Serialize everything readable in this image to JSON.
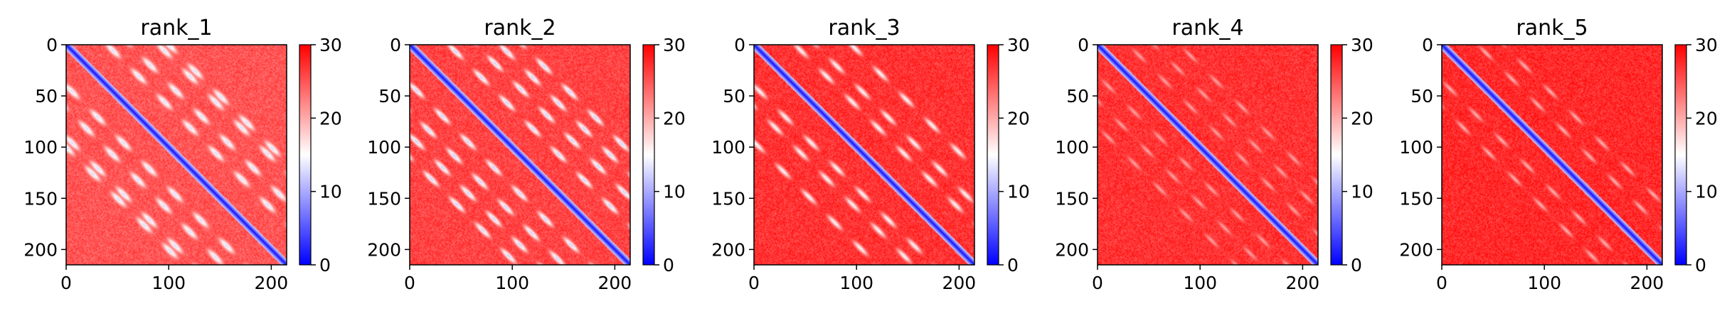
{
  "chart_data": [
    {
      "type": "heatmap",
      "title": "rank_1",
      "matrix_size": 215,
      "xlim": [
        0,
        215
      ],
      "ylim": [
        215,
        0
      ],
      "xticks": [
        0,
        100,
        200
      ],
      "yticks": [
        0,
        50,
        100,
        150,
        200
      ],
      "colorbar": {
        "range": [
          0,
          30
        ],
        "ticks": [
          0,
          10,
          20,
          30
        ],
        "colormap": "bwr"
      },
      "pattern": {
        "diagonal_value": 1,
        "background_value": 27,
        "contact_band_offsets": [
          40,
          62,
          90,
          100
        ],
        "contact_value": 12,
        "band_width": 7
      }
    },
    {
      "type": "heatmap",
      "title": "rank_2",
      "matrix_size": 215,
      "xlim": [
        0,
        215
      ],
      "ylim": [
        215,
        0
      ],
      "xticks": [
        0,
        100,
        200
      ],
      "yticks": [
        0,
        50,
        100,
        150,
        200
      ],
      "colorbar": {
        "range": [
          0,
          30
        ],
        "ticks": [
          0,
          10,
          20,
          30
        ],
        "colormap": "bwr"
      },
      "pattern": {
        "diagonal_value": 1,
        "background_value": 28,
        "contact_band_offsets": [
          38,
          65,
          88,
          110
        ],
        "contact_value": 11,
        "band_width": 6
      }
    },
    {
      "type": "heatmap",
      "title": "rank_3",
      "matrix_size": 215,
      "xlim": [
        0,
        215
      ],
      "ylim": [
        215,
        0
      ],
      "xticks": [
        0,
        100,
        200
      ],
      "yticks": [
        0,
        50,
        100,
        150,
        200
      ],
      "colorbar": {
        "range": [
          0,
          30
        ],
        "ticks": [
          0,
          10,
          20,
          30
        ],
        "colormap": "bwr"
      },
      "pattern": {
        "diagonal_value": 1,
        "background_value": 29,
        "contact_band_offsets": [
          40,
          60,
          95
        ],
        "contact_value": 14,
        "band_width": 6
      }
    },
    {
      "type": "heatmap",
      "title": "rank_4",
      "matrix_size": 215,
      "xlim": [
        0,
        215
      ],
      "ylim": [
        215,
        0
      ],
      "xticks": [
        0,
        100,
        200
      ],
      "yticks": [
        0,
        50,
        100,
        150,
        200
      ],
      "colorbar": {
        "range": [
          0,
          30
        ],
        "ticks": [
          0,
          10,
          20,
          30
        ],
        "colormap": "bwr"
      },
      "pattern": {
        "diagonal_value": 1,
        "background_value": 29,
        "contact_band_offsets": [
          30,
          55,
          80
        ],
        "contact_value": 20,
        "band_width": 5
      }
    },
    {
      "type": "heatmap",
      "title": "rank_5",
      "matrix_size": 215,
      "xlim": [
        0,
        215
      ],
      "ylim": [
        215,
        0
      ],
      "xticks": [
        0,
        100,
        200
      ],
      "yticks": [
        0,
        50,
        100,
        150,
        200
      ],
      "colorbar": {
        "range": [
          0,
          30
        ],
        "ticks": [
          0,
          10,
          20,
          30
        ],
        "colormap": "bwr"
      },
      "pattern": {
        "diagonal_value": 1,
        "background_value": 29.5,
        "contact_band_offsets": [
          35,
          60
        ],
        "contact_value": 19,
        "band_width": 5
      }
    }
  ]
}
